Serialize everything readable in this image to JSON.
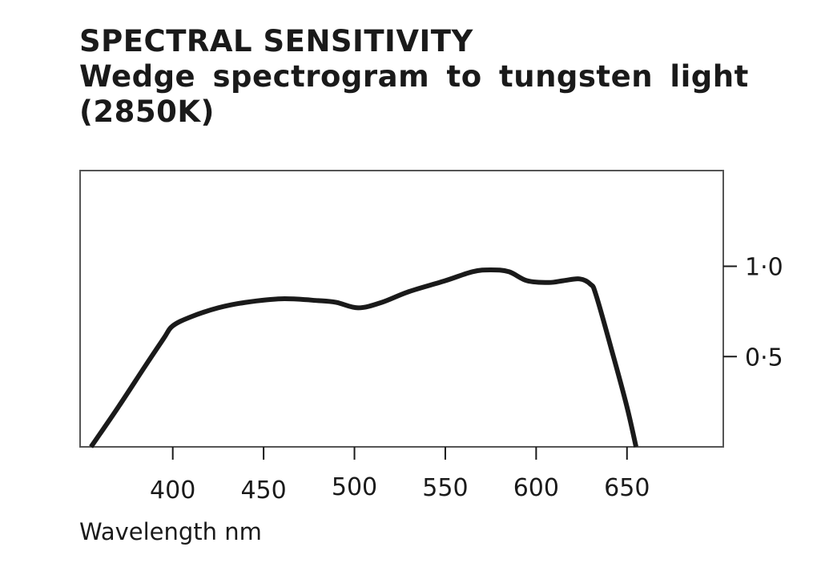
{
  "title": {
    "line1": "SPECTRAL SENSITIVITY",
    "line2": "Wedge spectrogram to tungsten light",
    "line3": "(2850K)"
  },
  "chart_data": {
    "type": "line",
    "title": "SPECTRAL SENSITIVITY Wedge spectrogram to tungsten light (2850K)",
    "xlabel": "Wavelength nm",
    "ylabel": "",
    "xlim": [
      349,
      703
    ],
    "ylim": [
      0,
      1.53
    ],
    "x_ticks": [
      400,
      450,
      500,
      550,
      600,
      650
    ],
    "x_tick_labels": [
      "400",
      "450",
      "500",
      "550",
      "600",
      "650"
    ],
    "y_ticks": [
      1.0,
      0.5
    ],
    "y_tick_labels": [
      "1·0",
      "0·5"
    ],
    "y_axis_side": "right",
    "grid": false,
    "legend": "none",
    "series": [
      {
        "name": "Spectral sensitivity",
        "color": "#1a1a1a",
        "x": [
          355,
          370,
          385,
          395,
          400,
          410,
          425,
          440,
          460,
          480,
          490,
          502,
          515,
          530,
          550,
          565,
          575,
          585,
          595,
          607,
          615,
          624,
          630,
          633,
          642,
          650,
          655
        ],
        "y": [
          0.0,
          0.22,
          0.45,
          0.6,
          0.67,
          0.72,
          0.77,
          0.8,
          0.82,
          0.81,
          0.8,
          0.77,
          0.8,
          0.86,
          0.92,
          0.97,
          0.98,
          0.97,
          0.92,
          0.91,
          0.92,
          0.93,
          0.9,
          0.84,
          0.52,
          0.22,
          0.0
        ]
      }
    ]
  },
  "colors": {
    "frame": "#555555",
    "ink": "#1a1a1a",
    "background": "#ffffff"
  }
}
